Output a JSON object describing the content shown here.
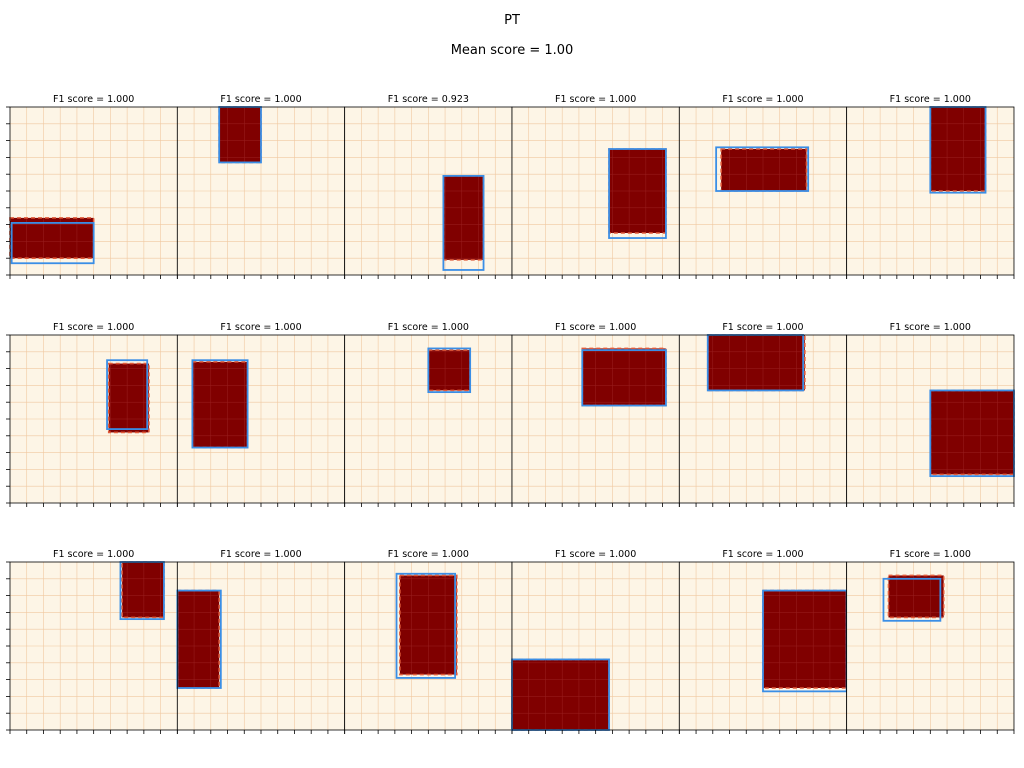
{
  "title": "PT",
  "subtitle": "Mean score = 1.00",
  "colors": {
    "background": "#fdf5e6",
    "grid": "#f0c8a0",
    "fill": "#800000",
    "dashed_outline": "#e05a3a",
    "prediction_outline": "#3a8ee6",
    "frame": "#000000"
  },
  "chart_data": {
    "type": "grid-panels",
    "rows": 3,
    "cols": 6,
    "grid_size": 10,
    "grid": true,
    "legend": "none",
    "panels": [
      {
        "title": "F1 score = 1.000",
        "target": [
          0,
          1,
          5,
          3.4
        ],
        "prediction": [
          0.1,
          0.7,
          5,
          3.1
        ]
      },
      {
        "title": "F1 score = 1.000",
        "target": [
          2.5,
          6.7,
          5,
          10
        ],
        "prediction": [
          2.5,
          6.7,
          5,
          10
        ]
      },
      {
        "title": "F1 score = 0.923",
        "target": [
          5.9,
          0.9,
          8.3,
          5.9
        ],
        "prediction": [
          5.9,
          0.3,
          8.3,
          5.9
        ]
      },
      {
        "title": "F1 score = 1.000",
        "target": [
          5.8,
          2.5,
          9.2,
          7.5
        ],
        "prediction": [
          5.8,
          2.2,
          9.2,
          7.5
        ]
      },
      {
        "title": "F1 score = 1.000",
        "target": [
          2.5,
          5.0,
          7.6,
          7.5
        ],
        "prediction": [
          2.2,
          5.0,
          7.7,
          7.6
        ]
      },
      {
        "title": "F1 score = 1.000",
        "target": [
          5.0,
          5.0,
          8.3,
          10
        ],
        "prediction": [
          5.0,
          4.9,
          8.3,
          10
        ]
      },
      {
        "title": "F1 score = 1.000",
        "target": [
          5.9,
          4.2,
          8.3,
          8.3
        ],
        "prediction": [
          5.8,
          4.4,
          8.2,
          8.5
        ]
      },
      {
        "title": "F1 score = 1.000",
        "target": [
          0.9,
          3.3,
          4.2,
          8.4
        ],
        "prediction": [
          0.9,
          3.3,
          4.2,
          8.5
        ]
      },
      {
        "title": "F1 score = 1.000",
        "target": [
          5.0,
          6.7,
          7.5,
          9.1
        ],
        "prediction": [
          5.0,
          6.6,
          7.5,
          9.2
        ]
      },
      {
        "title": "F1 score = 1.000",
        "target": [
          4.2,
          5.8,
          9.2,
          9.2
        ],
        "prediction": [
          4.2,
          5.8,
          9.2,
          9.1
        ]
      },
      {
        "title": "F1 score = 1.000",
        "target": [
          1.7,
          6.7,
          7.5,
          10
        ],
        "prediction": [
          1.7,
          6.7,
          7.4,
          10
        ]
      },
      {
        "title": "F1 score = 1.000",
        "target": [
          5.0,
          1.7,
          10,
          6.7
        ],
        "prediction": [
          5.0,
          1.6,
          10,
          6.7
        ]
      },
      {
        "title": "F1 score = 1.000",
        "target": [
          6.7,
          6.7,
          9.2,
          10
        ],
        "prediction": [
          6.6,
          6.6,
          9.2,
          10
        ]
      },
      {
        "title": "F1 score = 1.000",
        "target": [
          0,
          2.5,
          2.5,
          8.3
        ],
        "prediction": [
          0,
          2.5,
          2.6,
          8.3
        ]
      },
      {
        "title": "F1 score = 1.000",
        "target": [
          3.3,
          3.3,
          6.7,
          9.2
        ],
        "prediction": [
          3.1,
          3.1,
          6.6,
          9.3
        ]
      },
      {
        "title": "F1 score = 1.000",
        "target": [
          0,
          0,
          5.8,
          4.2
        ],
        "prediction": [
          0,
          0,
          5.8,
          4.2
        ]
      },
      {
        "title": "F1 score = 1.000",
        "target": [
          5.0,
          2.5,
          10,
          8.3
        ],
        "prediction": [
          5.0,
          2.3,
          10,
          8.3
        ]
      },
      {
        "title": "F1 score = 1.000",
        "target": [
          2.5,
          6.7,
          5.8,
          9.2
        ],
        "prediction": [
          2.2,
          6.5,
          5.6,
          9.0
        ]
      }
    ]
  }
}
